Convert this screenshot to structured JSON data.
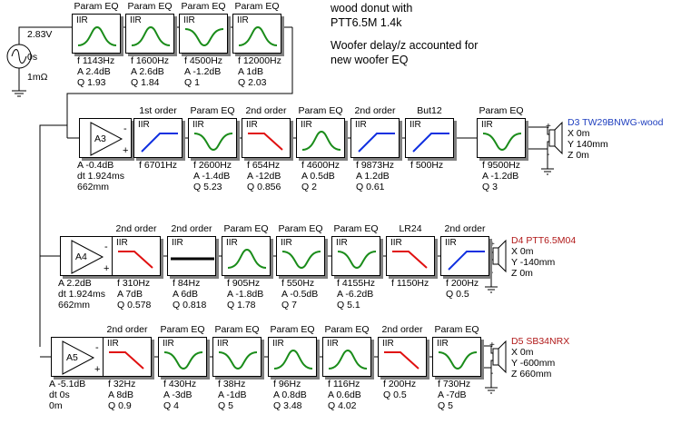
{
  "notes": {
    "line1": "wood donut with",
    "line2": "PTT6.5M   1.4k",
    "line3": "Woofer delay/z accounted for",
    "line4": "new woofer EQ"
  },
  "source": {
    "voltage": "2.83V",
    "delay": "0s",
    "impedance": "1mΩ"
  },
  "block_label": "IIR",
  "top_row": [
    {
      "header": "Param EQ",
      "curve": "peak",
      "p": [
        "f   1143Hz",
        "A  2.4dB",
        "Q  1.93"
      ]
    },
    {
      "header": "Param EQ",
      "curve": "peak",
      "p": [
        "f   1600Hz",
        "A  2.6dB",
        "Q  1.84"
      ]
    },
    {
      "header": "Param EQ",
      "curve": "dip",
      "p": [
        "f   4500Hz",
        "A  -1.2dB",
        "Q  1"
      ]
    },
    {
      "header": "Param EQ",
      "curve": "peak",
      "p": [
        "f   12000Hz",
        "A  1dB",
        "Q  2.03"
      ]
    }
  ],
  "channels": [
    {
      "amp_label": "A3",
      "amp_params": [
        "A  -0.4dB",
        "dt 1.924ms",
        "   662mm"
      ],
      "blocks": [
        {
          "header": "1st order",
          "curve": "hp_blue",
          "p": [
            "f   6701Hz"
          ]
        },
        {
          "header": "Param EQ",
          "curve": "dip",
          "p": [
            "f   2600Hz",
            "A  -1.4dB",
            "Q  5.23"
          ]
        },
        {
          "header": "2nd order",
          "curve": "lp_red",
          "p": [
            "f   654Hz",
            "A  -12dB",
            "Q  0.856"
          ]
        },
        {
          "header": "Param EQ",
          "curve": "peak",
          "p": [
            "f   4600Hz",
            "A  0.5dB",
            "Q  2"
          ]
        },
        {
          "header": "2nd order",
          "curve": "hp_blue",
          "p": [
            "f   9873Hz",
            "A  1.2dB",
            "Q  0.61"
          ]
        },
        {
          "header": "But12",
          "curve": "hp_blue",
          "p": [
            "f   500Hz"
          ]
        },
        {
          "header": "Param EQ",
          "curve": "dip",
          "p": [
            "f   9500Hz",
            "A  -1.2dB",
            "Q  3"
          ]
        }
      ],
      "speaker": {
        "name": "D3 TW29BNWG-wood",
        "color": "#1f3fbf",
        "x": "X 0m",
        "y": "Y 140mm",
        "z": "Z 0m"
      }
    },
    {
      "amp_label": "A4",
      "amp_params": [
        "A  2.2dB",
        "dt 1.924ms",
        "   662mm"
      ],
      "blocks": [
        {
          "header": "2nd order",
          "curve": "lp_red",
          "p": [
            "f   310Hz",
            "A  7dB",
            "Q  0.578"
          ]
        },
        {
          "header": "2nd order",
          "curve": "flat",
          "p": [
            "f   84Hz",
            "A  6dB",
            "Q  0.818"
          ]
        },
        {
          "header": "Param EQ",
          "curve": "peak",
          "p": [
            "f   905Hz",
            "A  -1.8dB",
            "Q  1.78"
          ]
        },
        {
          "header": "Param EQ",
          "curve": "dip",
          "p": [
            "f   550Hz",
            "A  -0.5dB",
            "Q  7"
          ]
        },
        {
          "header": "Param EQ",
          "curve": "dip",
          "p": [
            "f   4155Hz",
            "A  -6.2dB",
            "Q  5.1"
          ]
        },
        {
          "header": "LR24",
          "curve": "lp_red",
          "p": [
            "f   1150Hz"
          ]
        },
        {
          "header": "2nd order",
          "curve": "hp_blue",
          "p": [
            "f   200Hz",
            "Q  0.5"
          ]
        }
      ],
      "speaker": {
        "name": "D4 PTT6.5M04",
        "color": "#b01818",
        "x": "X 0m",
        "y": "Y -140mm",
        "z": "Z 0m"
      }
    },
    {
      "amp_label": "A5",
      "amp_params": [
        "A  -5.1dB",
        "dt 0s",
        "   0m"
      ],
      "blocks": [
        {
          "header": "2nd order",
          "curve": "lp_red",
          "p": [
            "f   32Hz",
            "A  8dB",
            "Q  0.9"
          ]
        },
        {
          "header": "Param EQ",
          "curve": "dip",
          "p": [
            "f   430Hz",
            "A  -3dB",
            "Q  4"
          ]
        },
        {
          "header": "Param EQ",
          "curve": "dip",
          "p": [
            "f   38Hz",
            "A  -1dB",
            "Q  5"
          ]
        },
        {
          "header": "Param EQ",
          "curve": "peak",
          "p": [
            "f   96Hz",
            "A  0.8dB",
            "Q  3.48"
          ]
        },
        {
          "header": "Param EQ",
          "curve": "peak",
          "p": [
            "f   116Hz",
            "A  0.6dB",
            "Q  4.02"
          ]
        },
        {
          "header": "2nd order",
          "curve": "lp_red",
          "p": [
            "f   200Hz",
            "Q  0.5"
          ]
        },
        {
          "header": "Param EQ",
          "curve": "dip",
          "p": [
            "f   730Hz",
            "A  -7dB",
            "Q  5"
          ]
        }
      ],
      "speaker": {
        "name": "D5 SB34NRX",
        "color": "#b01818",
        "x": "X 0m",
        "y": "Y -600mm",
        "z": "Z 660mm"
      }
    }
  ],
  "colors": {
    "green": "#1a8c1a",
    "red": "#e01010",
    "blue": "#1030e0",
    "wire": "#000000"
  }
}
